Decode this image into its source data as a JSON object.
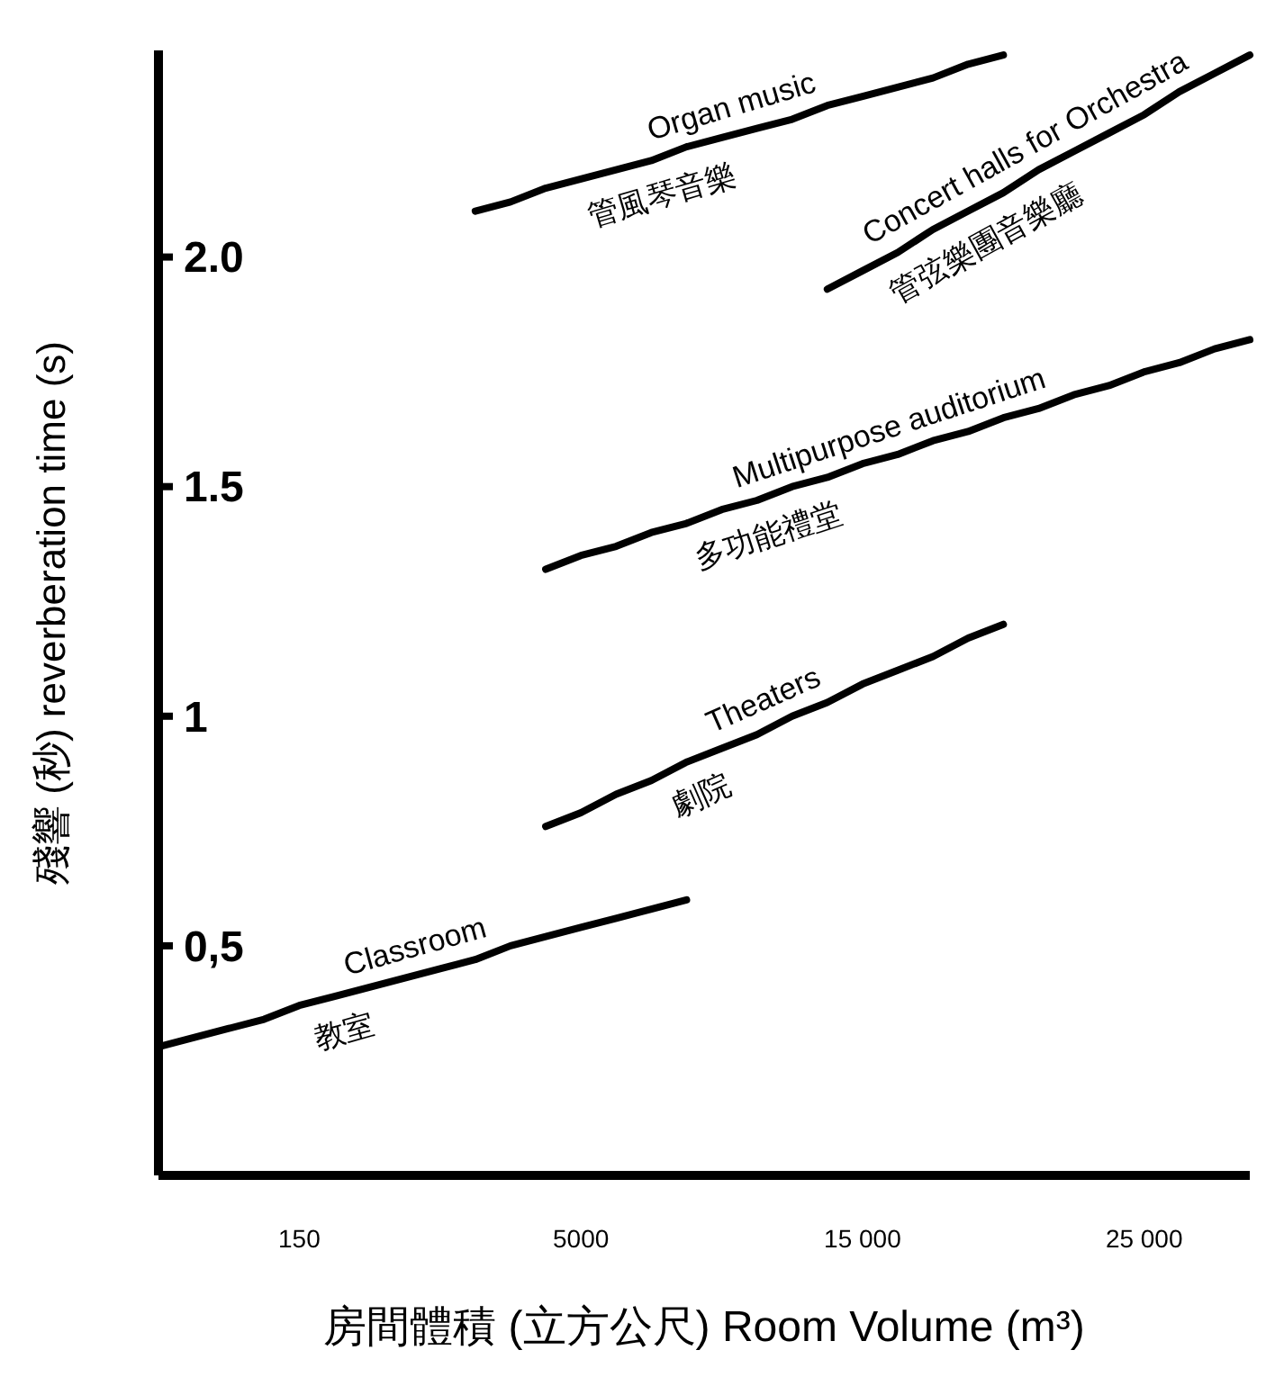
{
  "chart_data": {
    "type": "line",
    "xlabel": "房間體積 (立方公尺) Room Volume (m³)",
    "ylabel": "殘響 (秒)  reverberation time (s)",
    "categories": [
      null,
      null,
      null,
      null,
      "150",
      null,
      null,
      null,
      null,
      null,
      null,
      null,
      "5000",
      null,
      null,
      null,
      null,
      null,
      null,
      null,
      "15 000",
      null,
      null,
      null,
      null,
      null,
      null,
      null,
      "25 000",
      null,
      null,
      null
    ],
    "ylim": [
      0,
      2.45
    ],
    "yticks": [
      {
        "value": 0.5,
        "label": "0,5"
      },
      1,
      1.5,
      {
        "value": 2,
        "label": "2.0"
      }
    ],
    "grid": false,
    "marker": "none",
    "line_style": "solid",
    "series": [
      {
        "name": "Classroom",
        "color": "#000000",
        "values": [
          0.28,
          0.3,
          0.32,
          0.34,
          0.37,
          0.39,
          0.41,
          0.43,
          0.45,
          0.47,
          0.5,
          0.52,
          0.54,
          0.56,
          0.58,
          0.6,
          null,
          null,
          null,
          null,
          null,
          null,
          null,
          null,
          null,
          null,
          null,
          null,
          null,
          null,
          null,
          null
        ]
      },
      {
        "name": "Theaters",
        "color": "#000000",
        "values": [
          null,
          null,
          null,
          null,
          null,
          null,
          null,
          null,
          null,
          null,
          null,
          0.76,
          0.79,
          0.83,
          0.86,
          0.9,
          0.93,
          0.96,
          1.0,
          1.03,
          1.07,
          1.1,
          1.13,
          1.17,
          1.2,
          null,
          null,
          null,
          null,
          null,
          null,
          null
        ]
      },
      {
        "name": "Multipurpose auditorium",
        "color": "#000000",
        "values": [
          null,
          null,
          null,
          null,
          null,
          null,
          null,
          null,
          null,
          null,
          null,
          1.32,
          1.35,
          1.37,
          1.4,
          1.42,
          1.45,
          1.47,
          1.5,
          1.52,
          1.55,
          1.57,
          1.6,
          1.62,
          1.65,
          1.67,
          1.7,
          1.72,
          1.75,
          1.77,
          1.8,
          1.82
        ]
      },
      {
        "name": "Organ music",
        "color": "#000000",
        "values": [
          null,
          null,
          null,
          null,
          null,
          null,
          null,
          null,
          null,
          2.1,
          2.12,
          2.15,
          2.17,
          2.19,
          2.21,
          2.24,
          2.26,
          2.28,
          2.3,
          2.33,
          2.35,
          2.37,
          2.39,
          2.42,
          2.44,
          null,
          null,
          null,
          null,
          null,
          null,
          null
        ]
      },
      {
        "name": "Concert halls for Orchestra",
        "color": "#000000",
        "values": [
          null,
          null,
          null,
          null,
          null,
          null,
          null,
          null,
          null,
          null,
          null,
          null,
          null,
          null,
          null,
          null,
          null,
          null,
          null,
          1.93,
          1.97,
          2.01,
          2.06,
          2.1,
          2.14,
          2.19,
          2.23,
          2.27,
          2.31,
          2.36,
          2.4,
          2.44
        ]
      }
    ],
    "annotations": [
      "教室",
      "劇院",
      "多功能禮堂",
      "管風琴音樂",
      "管弦樂團音樂廳"
    ]
  }
}
